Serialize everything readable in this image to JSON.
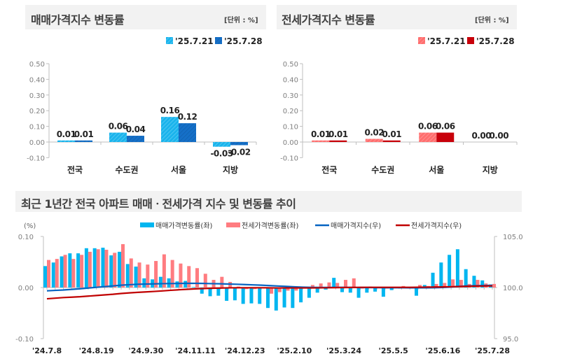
{
  "colors": {
    "sale_prev": "#1ab4ec",
    "sale_cur": "#1570c8",
    "lease_prev": "#ff7070",
    "lease_cur": "#c8000a",
    "sale_bar": "#00b6f0",
    "lease_bar": "#ff7c80",
    "sale_index": "#0563c1",
    "lease_index": "#c00000"
  },
  "sale_panel": {
    "title": "매매가격지수 변동률",
    "unit": "[단위 : %]"
  },
  "lease_panel": {
    "title": "전세가격지수 변동률",
    "unit": "[단위 : %]"
  },
  "trend_panel": {
    "title": "최근 1년간 전국 아파트 매매ㆍ전세가격 지수 및 변동률 추이"
  },
  "chart_data": [
    {
      "type": "bar",
      "categories": [
        "전국",
        "수도권",
        "서울",
        "지방"
      ],
      "series": [
        {
          "name": "'25.7.21",
          "values": [
            0.01,
            0.06,
            0.16,
            -0.03
          ]
        },
        {
          "name": "'25.7.28",
          "values": [
            0.01,
            0.04,
            0.12,
            -0.02
          ]
        }
      ],
      "ylim": [
        -0.1,
        0.5
      ],
      "yticks": [
        "0.50",
        "0.40",
        "0.30",
        "0.20",
        "0.10",
        "0.00",
        "-0.10"
      ],
      "legend": "top-right",
      "data_labels": true
    },
    {
      "type": "bar",
      "categories": [
        "전국",
        "수도권",
        "서울",
        "지방"
      ],
      "series": [
        {
          "name": "'25.7.21",
          "values": [
            0.01,
            0.02,
            0.06,
            0.0
          ]
        },
        {
          "name": "'25.7.28",
          "values": [
            0.01,
            0.01,
            0.06,
            0.0
          ]
        }
      ],
      "ylim": [
        -0.1,
        0.5
      ],
      "yticks": [
        "0.50",
        "0.40",
        "0.30",
        "0.20",
        "0.10",
        "0.00",
        "-0.10"
      ],
      "legend": "top-right",
      "data_labels": true
    },
    {
      "type": "bar+line",
      "ylabel": "(%)",
      "ylim": [
        -0.1,
        0.1
      ],
      "yticks": [
        "0.10",
        "0.00",
        "-0.10"
      ],
      "y2lim": [
        95.0,
        105.0
      ],
      "y2ticks": [
        "105.0",
        "100.0",
        "95.0"
      ],
      "legend": "top",
      "xtick_labels": [
        "'24.7.8",
        "'24.8.19",
        "'24.9.30",
        "'24.11.11",
        "'24.12.23",
        "'25.2.10",
        "'25.3.24",
        "'25.5.5",
        "'25.6.16",
        "'25.7.28"
      ],
      "series": [
        {
          "name": "매매가격변동률(좌)",
          "kind": "bar",
          "values": [
            0.042,
            0.049,
            0.061,
            0.067,
            0.067,
            0.077,
            0.077,
            0.078,
            0.063,
            0.07,
            0.046,
            0.041,
            0.018,
            0.016,
            0.021,
            0.018,
            0.012,
            0.013,
            0.001,
            -0.012,
            -0.017,
            -0.016,
            -0.026,
            -0.025,
            -0.032,
            -0.031,
            -0.032,
            -0.04,
            -0.045,
            -0.039,
            -0.04,
            -0.029,
            -0.02,
            -0.01,
            -0.004,
            0.019,
            -0.009,
            -0.01,
            -0.02,
            -0.01,
            -0.008,
            -0.018,
            -0.005,
            -0.002,
            -0.001,
            -0.016,
            0.005,
            0.029,
            0.049,
            0.064,
            0.075,
            0.036,
            0.023,
            0.014,
            0.006
          ]
        },
        {
          "name": "전세가격변동률(좌)",
          "kind": "bar",
          "values": [
            0.054,
            0.056,
            0.064,
            0.056,
            0.064,
            0.07,
            0.075,
            0.074,
            0.068,
            0.085,
            0.057,
            0.049,
            0.045,
            0.052,
            0.065,
            0.054,
            0.047,
            0.042,
            0.038,
            0.027,
            0.015,
            0.021,
            0.011,
            0.002,
            -0.003,
            -0.003,
            0.0,
            -0.012,
            -0.009,
            -0.006,
            -0.006,
            -0.002,
            0.005,
            0.008,
            0.01,
            0.009,
            0.015,
            0.018,
            -0.002,
            0.002,
            -0.001,
            -0.002,
            0.0,
            0.003,
            0.001,
            0.005,
            0.003,
            0.007,
            0.009,
            0.016,
            0.015,
            0.007,
            0.015,
            0.008,
            0.007
          ]
        },
        {
          "name": "매매가격지수(우)",
          "kind": "line",
          "values": [
            99.68,
            99.72,
            99.76,
            99.82,
            99.88,
            99.95,
            100.02,
            100.09,
            100.16,
            100.23,
            100.28,
            100.32,
            100.34,
            100.36,
            100.38,
            100.39,
            100.4,
            100.41,
            100.41,
            100.4,
            100.38,
            100.37,
            100.34,
            100.32,
            100.29,
            100.26,
            100.23,
            100.19,
            100.15,
            100.11,
            100.07,
            100.04,
            100.02,
            100.01,
            100.01,
            100.02,
            100.02,
            100.01,
            100.0,
            100.0,
            99.99,
            99.98,
            99.98,
            99.98,
            99.97,
            99.97,
            99.97,
            99.98,
            100.01,
            100.05,
            100.12,
            100.16,
            100.18,
            100.2,
            100.22
          ]
        },
        {
          "name": "전세가격지수(우)",
          "kind": "line",
          "values": [
            98.9,
            98.96,
            99.02,
            99.06,
            99.1,
            99.16,
            99.22,
            99.28,
            99.34,
            99.42,
            99.48,
            99.53,
            99.57,
            99.62,
            99.67,
            99.73,
            99.78,
            99.83,
            99.87,
            99.9,
            99.93,
            99.95,
            99.97,
            99.98,
            99.98,
            99.98,
            99.98,
            99.97,
            99.96,
            99.96,
            99.96,
            99.96,
            99.96,
            99.97,
            99.98,
            99.99,
            100.0,
            100.01,
            100.02,
            100.02,
            100.02,
            100.02,
            100.02,
            100.02,
            100.02,
            100.03,
            100.04,
            100.05,
            100.06,
            100.08,
            100.1,
            100.12,
            100.14,
            100.15,
            100.16
          ]
        }
      ]
    }
  ]
}
